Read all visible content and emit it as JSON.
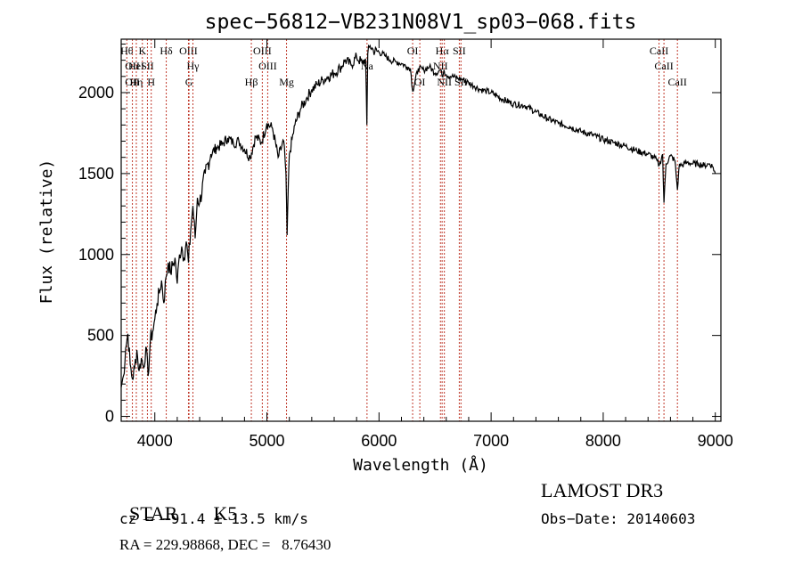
{
  "chart_data": {
    "type": "line",
    "title": "spec−56812−VB231N08V1_sp03−068.fits",
    "xlabel": "Wavelength (Å)",
    "ylabel": "Flux (relative)",
    "xlim": [
      3700,
      9050
    ],
    "ylim": [
      -30,
      2330
    ],
    "xticks": [
      4000,
      5000,
      6000,
      7000,
      8000,
      9000
    ],
    "yticks": [
      0,
      500,
      1000,
      1500,
      2000
    ],
    "grid": false,
    "series": [
      {
        "name": "flux",
        "x": [
          3700,
          3720,
          3740,
          3760,
          3780,
          3800,
          3820,
          3840,
          3860,
          3880,
          3900,
          3920,
          3940,
          3960,
          3980,
          4000,
          4020,
          4040,
          4060,
          4080,
          4100,
          4120,
          4140,
          4160,
          4180,
          4200,
          4220,
          4240,
          4260,
          4280,
          4300,
          4320,
          4340,
          4360,
          4380,
          4400,
          4450,
          4500,
          4550,
          4600,
          4650,
          4700,
          4750,
          4800,
          4850,
          4900,
          4950,
          5000,
          5050,
          5100,
          5150,
          5170,
          5180,
          5190,
          5200,
          5250,
          5300,
          5350,
          5400,
          5450,
          5500,
          5550,
          5600,
          5650,
          5700,
          5750,
          5800,
          5850,
          5880,
          5892,
          5900,
          5920,
          5950,
          6000,
          6050,
          6100,
          6150,
          6200,
          6250,
          6280,
          6300,
          6350,
          6400,
          6450,
          6500,
          6550,
          6563,
          6580,
          6600,
          6650,
          6700,
          6750,
          6800,
          6850,
          6900,
          6950,
          7000,
          7100,
          7200,
          7300,
          7400,
          7500,
          7600,
          7700,
          7800,
          7900,
          8000,
          8100,
          8200,
          8300,
          8400,
          8450,
          8480,
          8500,
          8530,
          8542,
          8560,
          8600,
          8640,
          8662,
          8680,
          8700,
          8750,
          8800,
          8850,
          8900,
          8950,
          8980,
          9000
        ],
        "values": [
          180,
          250,
          420,
          510,
          320,
          230,
          300,
          410,
          280,
          360,
          300,
          430,
          250,
          470,
          520,
          600,
          700,
          760,
          840,
          700,
          860,
          950,
          890,
          930,
          980,
          820,
          1000,
          1050,
          980,
          1080,
          950,
          1150,
          1300,
          1100,
          1350,
          1320,
          1500,
          1620,
          1660,
          1680,
          1720,
          1690,
          1700,
          1650,
          1600,
          1730,
          1690,
          1810,
          1780,
          1600,
          1700,
          1500,
          1120,
          1400,
          1620,
          1800,
          1900,
          1960,
          2020,
          2050,
          2080,
          2100,
          2120,
          2150,
          2200,
          2170,
          2220,
          2180,
          2210,
          1800,
          2240,
          2290,
          2260,
          2250,
          2230,
          2200,
          2190,
          2180,
          2160,
          2150,
          2010,
          2150,
          2140,
          2160,
          2120,
          2140,
          2100,
          2140,
          2110,
          2100,
          2090,
          2080,
          2060,
          2040,
          2020,
          2010,
          2000,
          1960,
          1930,
          1920,
          1880,
          1840,
          1810,
          1790,
          1760,
          1740,
          1710,
          1690,
          1670,
          1640,
          1620,
          1600,
          1580,
          1550,
          1620,
          1320,
          1560,
          1610,
          1580,
          1400,
          1560,
          1550,
          1570,
          1560,
          1560,
          1550,
          1560,
          1540,
          1500
        ]
      }
    ],
    "lines": [
      {
        "wl": 3750,
        "label": "Hθ",
        "row": 0
      },
      {
        "wl": 3800,
        "label": "OII",
        "row": 1
      },
      {
        "wl": 3800,
        "label": "OII",
        "row": 2
      },
      {
        "wl": 3835,
        "label": "HeI",
        "row": 1
      },
      {
        "wl": 3835,
        "label": "Hη",
        "row": 2
      },
      {
        "wl": 3889,
        "label": "K",
        "row": 0
      },
      {
        "wl": 3934,
        "label": "SII",
        "row": 1
      },
      {
        "wl": 3968,
        "label": "H",
        "row": 2
      },
      {
        "wl": 4102,
        "label": "Hδ",
        "row": 0
      },
      {
        "wl": 4300,
        "label": "OIII",
        "row": 0
      },
      {
        "wl": 4340,
        "label": "Hγ",
        "row": 1
      },
      {
        "wl": 4305,
        "label": "G",
        "row": 2
      },
      {
        "wl": 4861,
        "label": "Hβ",
        "row": 2
      },
      {
        "wl": 4959,
        "label": "OIII",
        "row": 0
      },
      {
        "wl": 5007,
        "label": "OIII",
        "row": 1
      },
      {
        "wl": 5175,
        "label": "Mg",
        "row": 2
      },
      {
        "wl": 5893,
        "label": "Na",
        "row": 1
      },
      {
        "wl": 6300,
        "label": "OI",
        "row": 0
      },
      {
        "wl": 6364,
        "label": "OI",
        "row": 2
      },
      {
        "wl": 6563,
        "label": "Hα",
        "row": 0
      },
      {
        "wl": 6548,
        "label": "NII",
        "row": 1
      },
      {
        "wl": 6583,
        "label": "NII",
        "row": 2
      },
      {
        "wl": 6716,
        "label": "SII",
        "row": 0
      },
      {
        "wl": 6731,
        "label": "SII",
        "row": 2
      },
      {
        "wl": 8498,
        "label": "CaII",
        "row": 0
      },
      {
        "wl": 8542,
        "label": "CaII",
        "row": 1
      },
      {
        "wl": 8662,
        "label": "CaII",
        "row": 2
      }
    ]
  },
  "info": {
    "class": "STAR",
    "subclass": "K5",
    "survey": "LAMOST DR3",
    "cz": "cz = −91.4 ± 13.5 km/s",
    "obs_date": "Obs−Date: 20140603",
    "radec": "RA = 229.98868, DEC =   8.76430"
  },
  "colors": {
    "spectrum": "#000000",
    "line_marker": "#c0392b",
    "axis": "#000000"
  }
}
